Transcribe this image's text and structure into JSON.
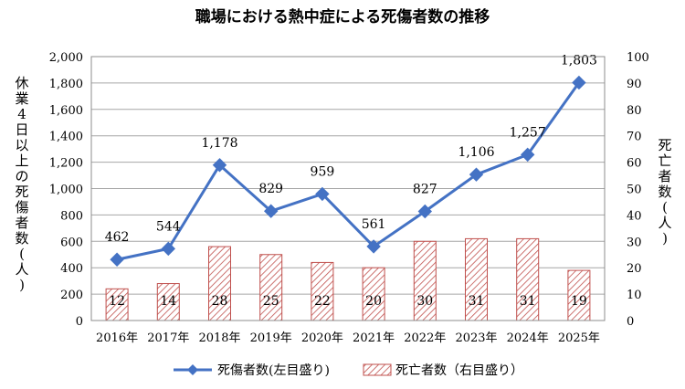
{
  "chart_data": {
    "type": "bar",
    "title": "職場における熱中症による死傷者数の推移",
    "categories": [
      "2016年",
      "2017年",
      "2018年",
      "2019年",
      "2020年",
      "2021年",
      "2022年",
      "2023年",
      "2024年",
      "2025年"
    ],
    "series": [
      {
        "name": "死傷者数(左目盛り)",
        "type": "line",
        "axis": "left",
        "color": "#4472c4",
        "values": [
          462,
          544,
          1178,
          829,
          959,
          561,
          827,
          1106,
          1257,
          1803
        ],
        "labels": [
          "462",
          "544",
          "1,178",
          "829",
          "959",
          "561",
          "827",
          "1,106",
          "1,257",
          "1,803"
        ]
      },
      {
        "name": "死亡者数（右目盛り）",
        "type": "bar",
        "axis": "right",
        "color": "#c0504d",
        "values": [
          12,
          14,
          28,
          25,
          22,
          20,
          30,
          31,
          31,
          19
        ],
        "labels": [
          "12",
          "14",
          "28",
          "25",
          "22",
          "20",
          "30",
          "31",
          "31",
          "19"
        ]
      }
    ],
    "left_axis": {
      "label": "休業4日以上の死傷者数(人)",
      "ylim": [
        0,
        2000
      ],
      "ticks": [
        "0",
        "200",
        "400",
        "600",
        "800",
        "1,000",
        "1,200",
        "1,400",
        "1,600",
        "1,800",
        "2,000"
      ]
    },
    "right_axis": {
      "label": "死亡者数(人)",
      "ylim": [
        0,
        100
      ],
      "ticks": [
        "0",
        "10",
        "20",
        "30",
        "40",
        "50",
        "60",
        "70",
        "80",
        "90",
        "100"
      ]
    },
    "grid": true,
    "legend": "bottom"
  }
}
